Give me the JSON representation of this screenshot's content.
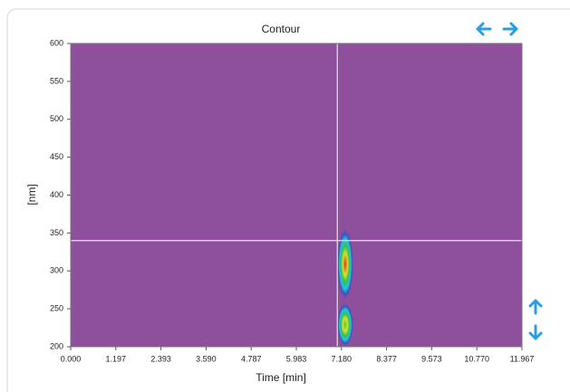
{
  "chart_data": {
    "type": "contour",
    "title": "Contour",
    "xlabel": "Time [min]",
    "ylabel": "[nm]",
    "xlim": [
      0,
      11.967
    ],
    "ylim": [
      200,
      600
    ],
    "xticks": [
      {
        "value": 0,
        "label": "0.000"
      },
      1.197,
      2.393,
      {
        "value": 3.59,
        "label": "3.590"
      },
      4.787,
      5.983,
      {
        "value": 7.18,
        "label": "7.180"
      },
      8.377,
      9.573,
      {
        "value": 10.77,
        "label": "10.770"
      },
      11.967
    ],
    "yticks": [
      200,
      250,
      300,
      350,
      400,
      450,
      500,
      550,
      600
    ],
    "background": "#8e4f9c",
    "peaks": [
      {
        "x": 7.28,
        "ylim": [
          262,
          356
        ],
        "color": "#e8321e"
      },
      {
        "x": 7.28,
        "ylim": [
          200,
          258
        ],
        "color": "#58c83a"
      }
    ],
    "crosshair": {
      "x": 7.07,
      "y": 340
    }
  }
}
